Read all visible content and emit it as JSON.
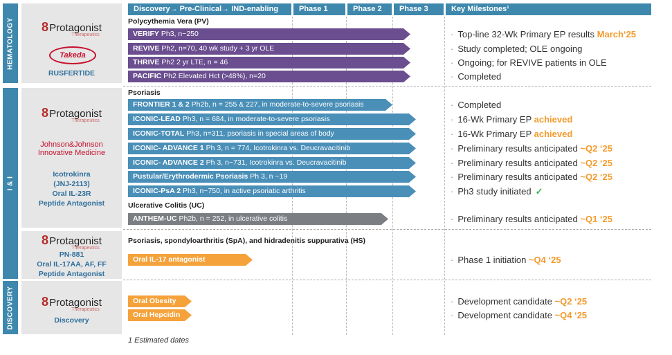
{
  "header": {
    "col_stage": "Discovery→ Pre-Clinical→ IND-enabling",
    "col_p1": "Phase 1",
    "col_p2": "Phase 2",
    "col_p3": "Phase 3",
    "col_ms": "Key Milestones¹"
  },
  "sections": {
    "hematology": "HEMATOLOGY",
    "ii": "I & I",
    "discovery": "DISCOVERY"
  },
  "companies": {
    "protagonist_word": "Protagonist",
    "protagonist_sub": "Therapeutics",
    "takeda": "Takeda",
    "rusfertide": "RUSFERTIDE",
    "jj1": "Johnson&Johnson",
    "jj2": "Innovative Medicine",
    "icotro1": "Icotrokinra",
    "icotro2": "(JNJ-2113)",
    "icotro3": "Oral IL-23R",
    "icotro4": "Peptide Antagonist",
    "pn1": "PN-881",
    "pn2": "Oral IL-17AA, AF, FF",
    "pn3": "Peptide Antagonist",
    "disc": "Discovery"
  },
  "subheads": {
    "pv": "Polycythemia Vera (PV)",
    "psoriasis": "Psoriasis",
    "uc": "Ulcerative Colitis (UC)",
    "hs": "Psoriasis, spondyloarthritis (SpA), and hidradenitis suppurativa (HS)"
  },
  "bars": [
    {
      "name": "VERIFY",
      "desc": " Ph3, n~250",
      "color": "#6a4e8f",
      "milestone": "Top-line 32-Wk Primary EP results ",
      "hl": "March‘25"
    },
    {
      "name": "REVIVE",
      "desc": " Ph2, n=70, 40 wk study + 3 yr OLE",
      "color": "#6a4e8f",
      "milestone": "Study completed; OLE ongoing",
      "hl": ""
    },
    {
      "name": "THRIVE",
      "desc": " Ph2 2 yr LTE, n = 46",
      "color": "#6a4e8f",
      "milestone": "Ongoing; for REVIVE patients in OLE",
      "hl": ""
    },
    {
      "name": "PACIFIC",
      "desc": " Ph2 Elevated Hct (>48%), n=20",
      "color": "#6a4e8f",
      "milestone": "Completed",
      "hl": ""
    },
    {
      "name": "FRONTIER 1 & 2",
      "desc": " Ph2b, n = 255 & 227, in moderate-to-severe psoriasis",
      "color": "#4a8fb8",
      "milestone": "Completed",
      "hl": ""
    },
    {
      "name": "ICONIC-LEAD",
      "desc": " Ph3, n = 684, in moderate-to-severe psoriasis",
      "color": "#4a8fb8",
      "milestone": "16-Wk Primary EP ",
      "hl": "achieved"
    },
    {
      "name": "ICONIC-TOTAL",
      "desc": " Ph3, n=311, psoriasis in special areas of body",
      "color": "#4a8fb8",
      "milestone": "16-Wk Primary EP ",
      "hl": "achieved"
    },
    {
      "name": "ICONIC- ADVANCE 1",
      "desc": " Ph 3, n = 774, Icotrokinra vs. Deucravacitinib",
      "color": "#4a8fb8",
      "milestone": "Preliminary results anticipated ",
      "hl": "~Q2 ‘25"
    },
    {
      "name": "ICONIC- ADVANCE 2",
      "desc": " Ph 3, n~731, Icotrokinra vs. Deucravacitinib",
      "color": "#4a8fb8",
      "milestone": "Preliminary results anticipated ",
      "hl": "~Q2 ‘25"
    },
    {
      "name": "Pustular/Erythrodermic Psoriasis",
      "desc": " Ph 3, n ~19",
      "color": "#4a8fb8",
      "milestone": "Preliminary results anticipated ",
      "hl": "~Q2 ‘25"
    },
    {
      "name": "ICONIC-PsA 2",
      "desc": " Ph3, n~750, in active psoriatic arthritis",
      "color": "#4a8fb8",
      "milestone": "Ph3 study initiated",
      "hl": ""
    },
    {
      "name": "ANTHEM-UC",
      "desc": " Ph2b, n = 252, in ulcerative colitis",
      "color": "#7b7f83",
      "milestone": "Preliminary results anticipated ",
      "hl": "~Q1 ‘25"
    },
    {
      "name": "Oral IL-17 antagonist",
      "desc": "",
      "color": "#f5a23a",
      "milestone": "Phase 1 initiation ",
      "hl": "~Q4 ‘25"
    },
    {
      "name": "Oral Obesity",
      "desc": "",
      "color": "#f5a23a",
      "milestone": "Development candidate ",
      "hl": "~Q2 ‘25"
    },
    {
      "name": "Oral Hepcidin",
      "desc": "",
      "color": "#f5a23a",
      "milestone": "Development candidate ",
      "hl": "~Q4 ‘25"
    }
  ],
  "check": "✓",
  "footnote": "1 Estimated dates"
}
